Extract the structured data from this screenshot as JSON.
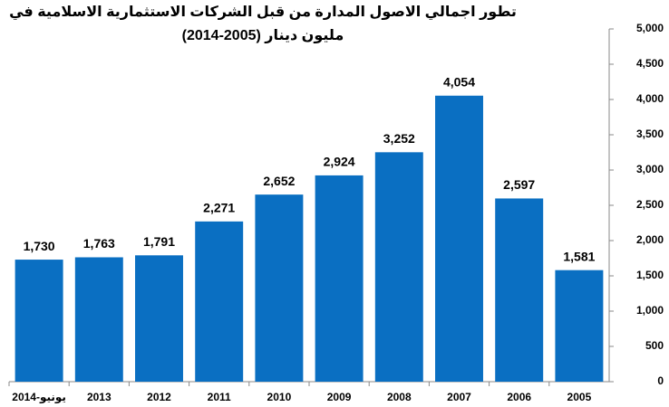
{
  "chart_data": {
    "type": "bar",
    "title": [
      "تطور اجمالي الاصول المدارة من قبل الشركات الاستثمارية الاسلامية في",
      "(2014-2005) مليون دينار"
    ],
    "categories": [
      "يونيو-2014",
      "2013",
      "2012",
      "2011",
      "2010",
      "2009",
      "2008",
      "2007",
      "2006",
      "2005"
    ],
    "values": [
      1730,
      1763,
      1791,
      2271,
      2652,
      2924,
      3252,
      4054,
      2597,
      1581
    ],
    "value_labels": [
      "1,730",
      "1,763",
      "1,791",
      "2,271",
      "2,652",
      "2,924",
      "3,252",
      "4,054",
      "2,597",
      "1,581"
    ],
    "color": "#0a6fc2",
    "ylim": [
      0,
      5000
    ],
    "yticks": [
      0,
      500,
      {
        "value": 1000,
        "label": "1,000"
      },
      {
        "value": 1500,
        "label": "1,500"
      },
      {
        "value": 2000,
        "label": "2,000"
      },
      {
        "value": 2500,
        "label": "2,500"
      },
      {
        "value": 3000,
        "label": "3,000"
      },
      {
        "value": 3500,
        "label": "3,500"
      },
      {
        "value": 4000,
        "label": "4,000"
      },
      {
        "value": 4500,
        "label": "4,500"
      },
      {
        "value": 5000,
        "label": "5,000"
      }
    ],
    "y_axis_side": "right"
  }
}
